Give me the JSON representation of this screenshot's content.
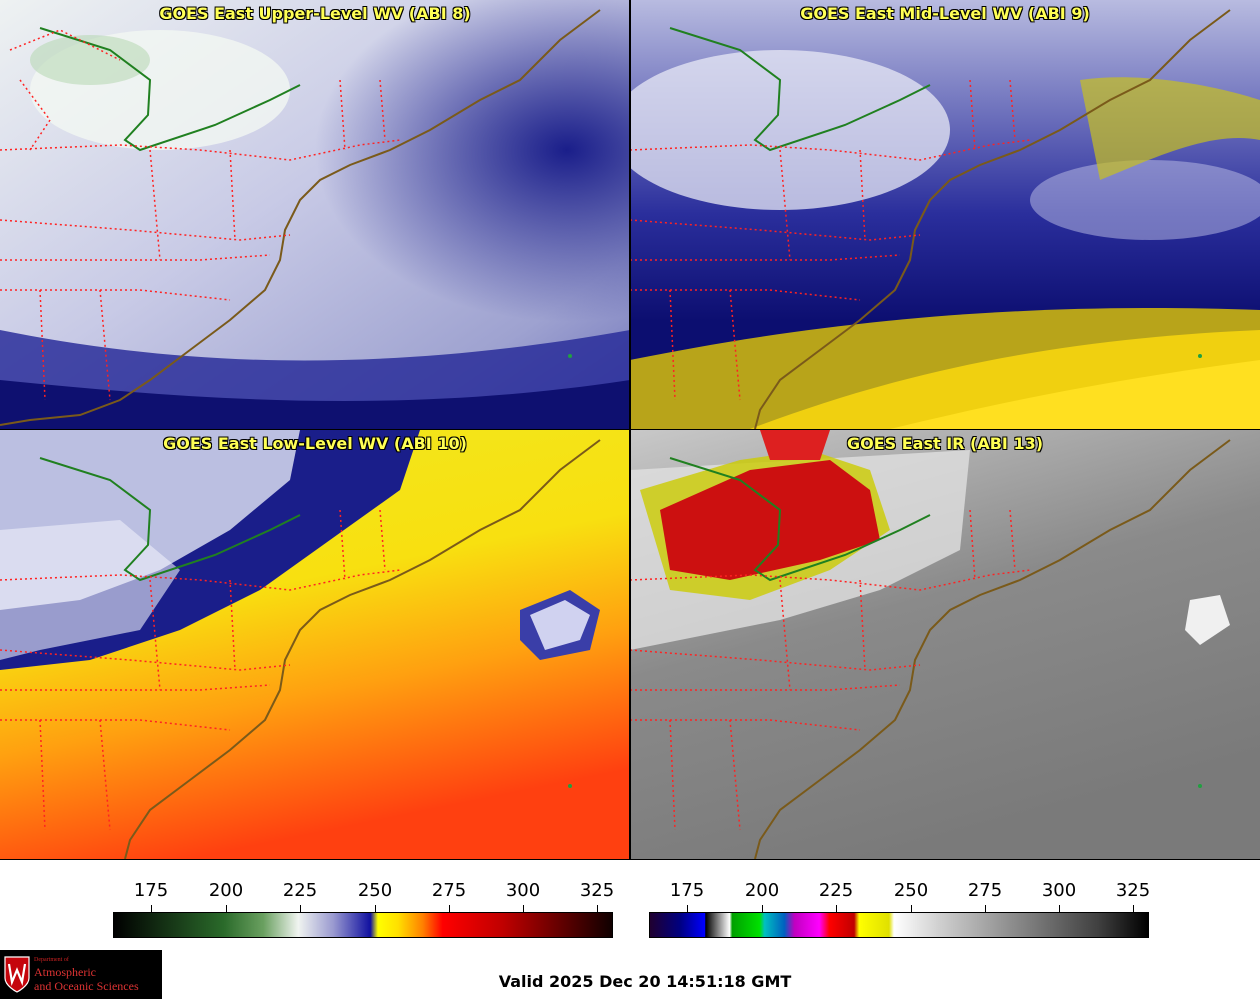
{
  "panels": [
    {
      "title": "GOES East Upper-Level WV (ABI 8)"
    },
    {
      "title": "GOES East Mid-Level WV (ABI 9)"
    },
    {
      "title": "GOES East Low-Level WV (ABI 10)"
    },
    {
      "title": "GOES East IR (ABI 13)"
    }
  ],
  "colorbars": {
    "wv": {
      "ticks": [
        "175",
        "200",
        "225",
        "250",
        "275",
        "300",
        "325"
      ]
    },
    "ir": {
      "ticks": [
        "175",
        "200",
        "225",
        "250",
        "275",
        "300",
        "325"
      ]
    }
  },
  "logo": {
    "dept": "Department of",
    "line1": "Atmospheric",
    "line2": "and Oceanic Sciences"
  },
  "valid_time": "Valid 2025 Dec 20 14:51:18 GMT",
  "colors": {
    "title_text": "#ffff55",
    "state_borders": "#ff2222",
    "coastline": "#7a5a1a",
    "canada_border": "#208020"
  }
}
